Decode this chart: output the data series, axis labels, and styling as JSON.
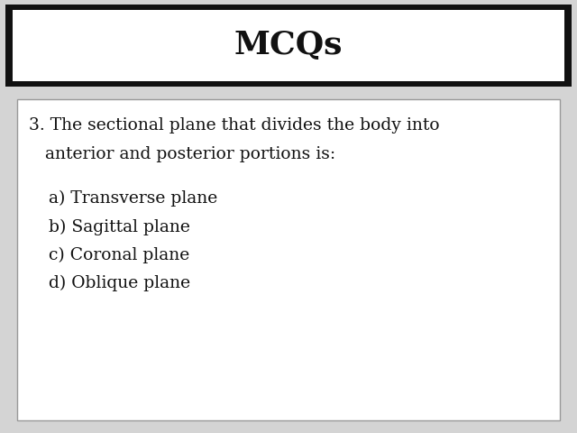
{
  "title": "MCQs",
  "title_fontsize": 26,
  "title_fontweight": "bold",
  "slide_bg_color": "#d4d4d4",
  "question_line1": "3. The sectional plane that divides the body into",
  "question_line2": "   anterior and posterior portions is:",
  "question_fontsize": 13.5,
  "options": [
    "a) Transverse plane",
    "b) Sagittal plane",
    "c) Coronal plane",
    "d) Oblique plane"
  ],
  "options_fontsize": 13.5,
  "text_color": "#111111",
  "box_edge_color": "#999999",
  "box_face_color": "#ffffff",
  "title_bar_outer_color": "#111111",
  "title_bar_inner_color": "#ffffff",
  "title_font_family": "serif"
}
